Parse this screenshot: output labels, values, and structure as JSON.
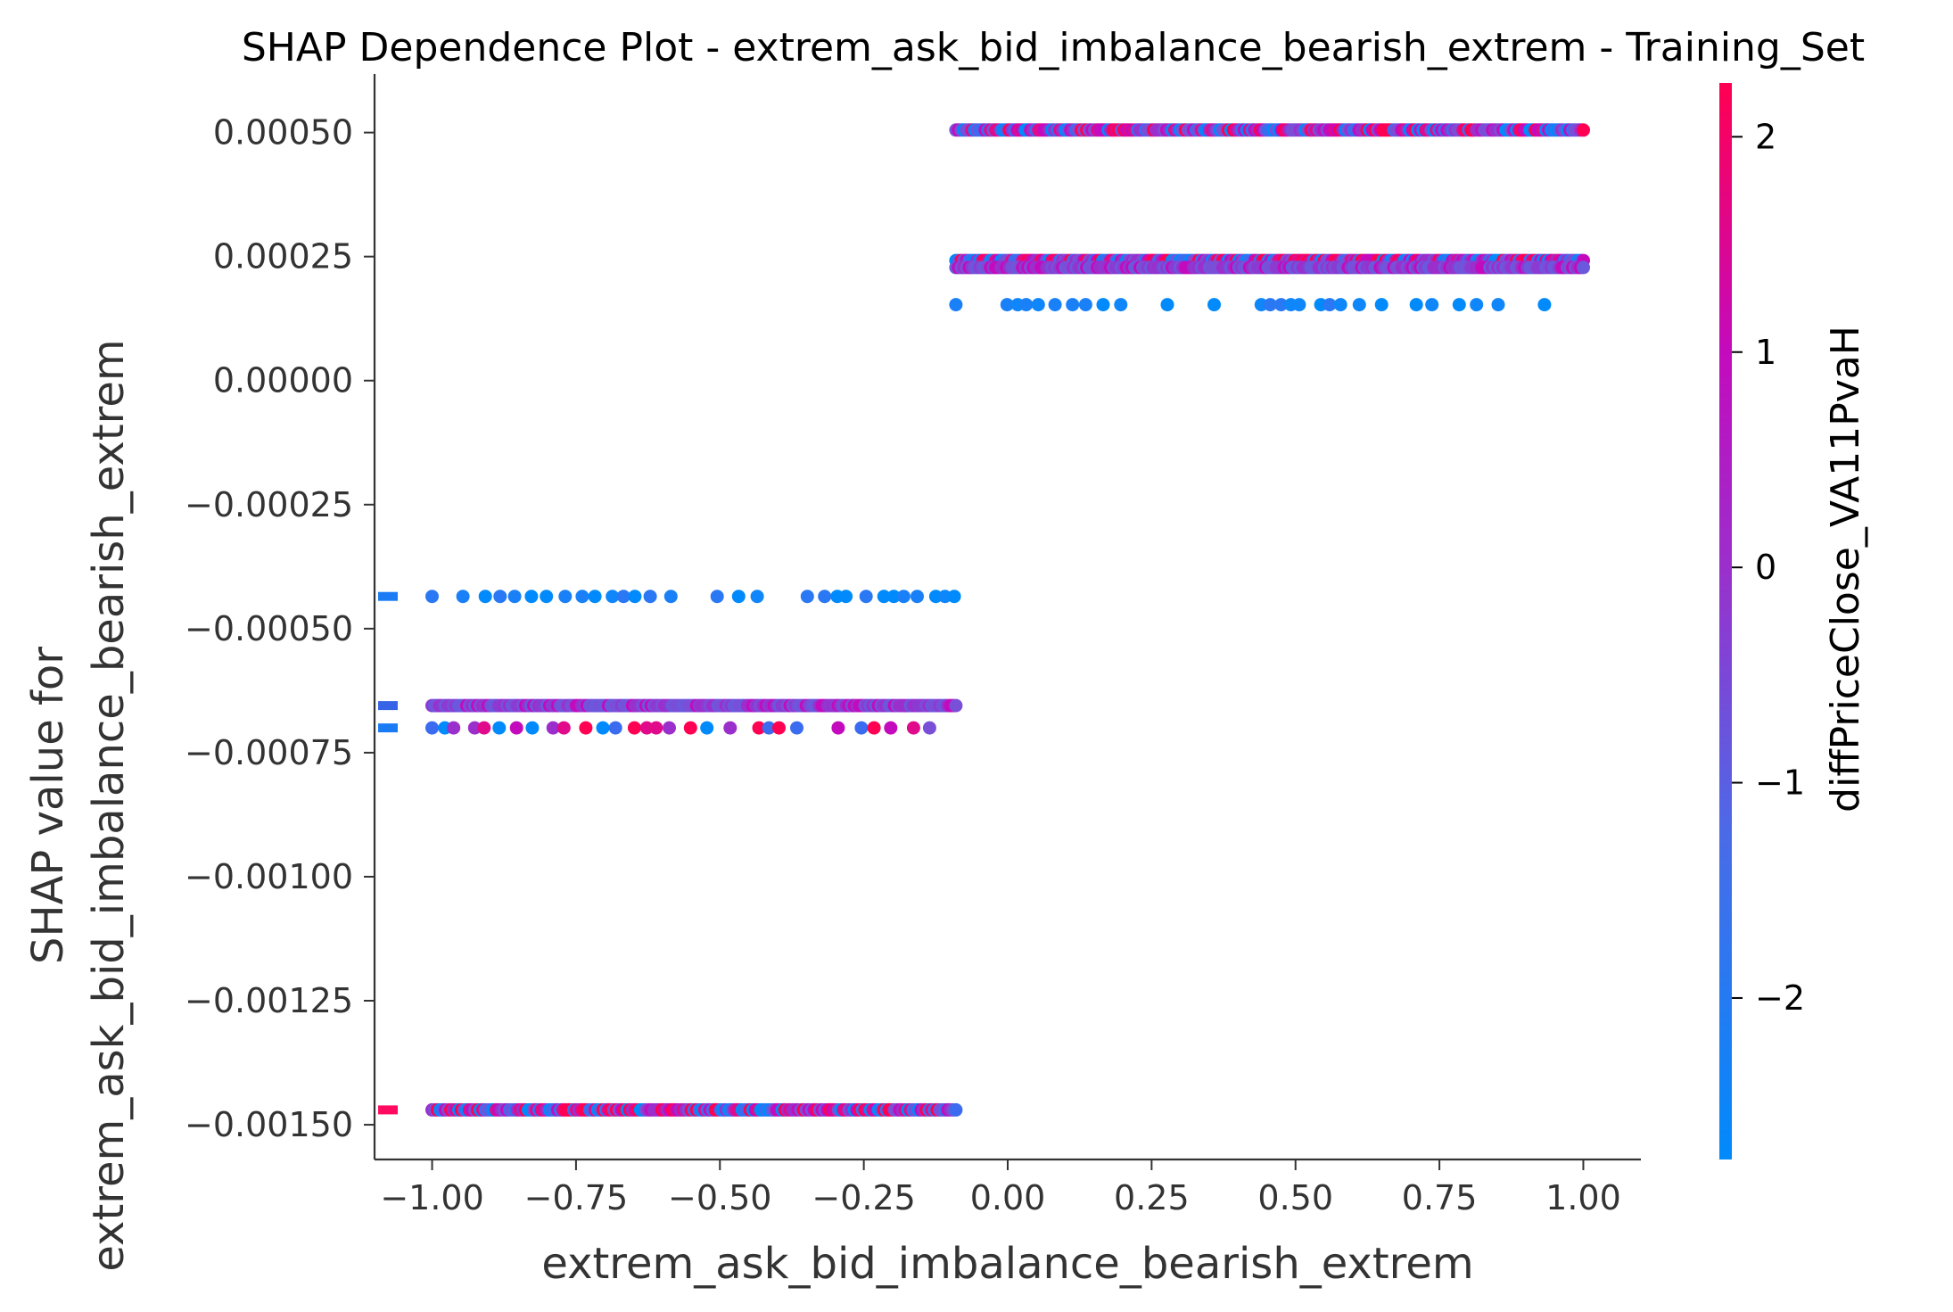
{
  "chart_data": {
    "type": "scatter",
    "title": "SHAP Dependence Plot - extrem_ask_bid_imbalance_bearish_extrem - Training_Set",
    "xlabel": "extrem_ask_bid_imbalance_bearish_extrem",
    "ylabel_line1": "SHAP value for",
    "ylabel_line2": "extrem_ask_bid_imbalance_bearish_extrem",
    "xlim": [
      -1.1,
      1.1
    ],
    "ylim": [
      -0.00157,
      0.0006
    ],
    "x_ticks": [
      -1.0,
      -0.75,
      -0.5,
      -0.25,
      0.0,
      0.25,
      0.5,
      0.75,
      1.0
    ],
    "x_tick_labels": [
      "−1.00",
      "−0.75",
      "−0.50",
      "−0.25",
      "0.00",
      "0.25",
      "0.50",
      "0.75",
      "1.00"
    ],
    "y_ticks": [
      0.0005,
      0.00025,
      0.0,
      -0.00025,
      -0.0005,
      -0.00075,
      -0.001,
      -0.00125,
      -0.0015
    ],
    "y_tick_labels": [
      "0.00050",
      "0.00025",
      "0.00000",
      "−0.00025",
      "−0.00050",
      "−0.00075",
      "−0.00100",
      "−0.00125",
      "−0.00150"
    ],
    "grid": false,
    "colorbar": {
      "label": "diffPriceClose_VA11PvaH",
      "range": [
        -2.75,
        2.25
      ],
      "ticks": [
        2,
        1,
        0,
        -1,
        -2
      ],
      "tick_labels": [
        "2",
        "1",
        "0",
        "−1",
        "−2"
      ],
      "colors": [
        "#008afb",
        "#7a4fd8",
        "#c30bbd",
        "#ff0052"
      ]
    },
    "series": [
      {
        "shap_value": 0.000505,
        "x_range": [
          -0.09,
          1.0
        ],
        "color_mix": "mixed",
        "density": "dense"
      },
      {
        "shap_value": 0.000242,
        "x_range": [
          -0.09,
          1.0
        ],
        "color_mix": "mixed",
        "density": "dense"
      },
      {
        "shap_value": 0.000228,
        "x_range": [
          -0.09,
          1.0
        ],
        "color_mix": "purple",
        "density": "dense"
      },
      {
        "shap_value": 0.000153,
        "x_range": [
          -0.09,
          1.0
        ],
        "color_mix": "blue",
        "density": "sparse"
      },
      {
        "shap_value": -0.000435,
        "x_range": [
          -1.0,
          -0.09
        ],
        "color_mix": "blue",
        "density": "sparse"
      },
      {
        "shap_value": -0.000655,
        "x_range": [
          -1.0,
          -0.09
        ],
        "color_mix": "purple",
        "density": "dense"
      },
      {
        "shap_value": -0.0007,
        "x_range": [
          -1.0,
          -0.09
        ],
        "color_mix": "mixed",
        "density": "sparse"
      },
      {
        "shap_value": -0.00147,
        "x_range": [
          -1.0,
          -0.09
        ],
        "color_mix": "mixed",
        "density": "dense"
      }
    ],
    "rug_marks": [
      {
        "shap_value": -0.000435,
        "color": "#1a7bf5"
      },
      {
        "shap_value": -0.000655,
        "color": "#3565e6"
      },
      {
        "shap_value": -0.0007,
        "color": "#1a7bf5"
      },
      {
        "shap_value": -0.00147,
        "color": "#ff0a60"
      }
    ]
  }
}
